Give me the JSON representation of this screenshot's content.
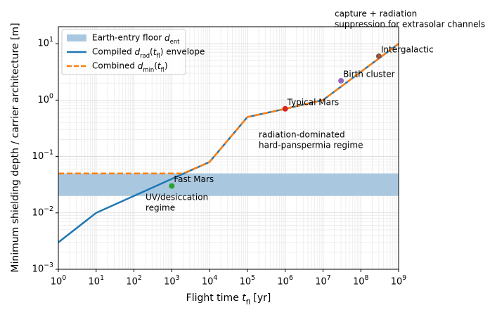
{
  "chart_data": {
    "type": "line",
    "xlabel": "Flight time t_fl [yr]",
    "ylabel": "Minimum shielding depth / carrier architecture [m]",
    "xscale": "log",
    "yscale": "log",
    "xlim": [
      1,
      1000000000
    ],
    "ylim": [
      0.001,
      20
    ],
    "xticks": [
      {
        "value": 1,
        "label": "10^0"
      },
      {
        "value": 10,
        "label": "10^1"
      },
      {
        "value": 100,
        "label": "10^2"
      },
      {
        "value": 1000,
        "label": "10^3"
      },
      {
        "value": 10000,
        "label": "10^4"
      },
      {
        "value": 100000,
        "label": "10^5"
      },
      {
        "value": 1000000,
        "label": "10^6"
      },
      {
        "value": 10000000,
        "label": "10^7"
      },
      {
        "value": 100000000,
        "label": "10^8"
      },
      {
        "value": 1000000000,
        "label": "10^9"
      }
    ],
    "yticks": [
      {
        "value": 0.001,
        "label": "10^−3"
      },
      {
        "value": 0.01,
        "label": "10^−2"
      },
      {
        "value": 0.1,
        "label": "10^−1"
      },
      {
        "value": 1,
        "label": "10^0"
      },
      {
        "value": 10,
        "label": "10^1"
      }
    ],
    "grid": true,
    "minor_grid": true,
    "legend": "upper left",
    "band": {
      "name": "Earth-entry floor d_ent",
      "color": "#a9c8e0",
      "values": [
        0.02,
        0.05
      ]
    },
    "series": [
      {
        "name": "Compiled d_rad(t_fl) envelope",
        "color": "#1f77b4",
        "dash": false,
        "x": [
          1,
          10,
          10000,
          100000,
          1000000,
          10000000,
          1000000000
        ],
        "values": [
          0.003,
          0.01,
          0.08,
          0.5,
          0.7,
          1.0,
          10
        ]
      },
      {
        "name": "Combined d_min(t_fl)",
        "color": "#ff7f0e",
        "dash": true,
        "x": [
          1,
          2000,
          10000,
          100000,
          1000000,
          10000000,
          1000000000
        ],
        "values": [
          0.05,
          0.05,
          0.08,
          0.5,
          0.7,
          1.0,
          10
        ]
      }
    ],
    "points": [
      {
        "name": "Fast Mars",
        "x": 1000,
        "y": 0.03,
        "color": "#2ca02c"
      },
      {
        "name": "Typical Mars",
        "x": 1000000,
        "y": 0.7,
        "color": "#d62728"
      },
      {
        "name": "Birth cluster",
        "x": 30000000,
        "y": 2.2,
        "color": "#9467bd"
      },
      {
        "name": "Intergalactic",
        "x": 300000000,
        "y": 6,
        "color": "#8c564b"
      }
    ],
    "annotations": [
      {
        "lines": [
          "radiation-dominated",
          "hard-panspermia regime"
        ]
      },
      {
        "lines": [
          "UV/desiccation",
          "regime"
        ]
      },
      {
        "lines": [
          "capture + radiation",
          "suppression for extrasolar channels"
        ]
      }
    ]
  }
}
